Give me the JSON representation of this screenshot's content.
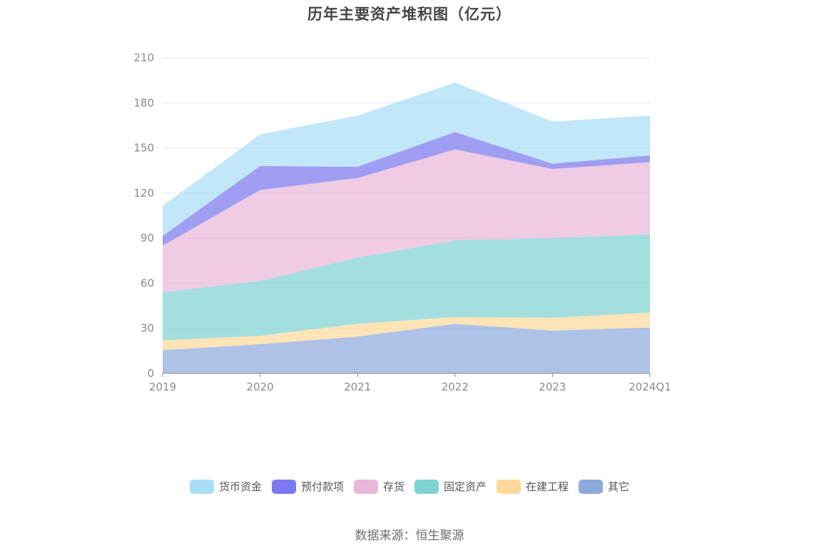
{
  "chart_data": {
    "type": "area",
    "stacked": true,
    "title": "历年主要资产堆积图（亿元）",
    "categories": [
      "2019",
      "2020",
      "2021",
      "2022",
      "2023",
      "2024Q1"
    ],
    "ylim": [
      0,
      210
    ],
    "yticks": [
      "0",
      "30",
      "60",
      "90",
      "120",
      "150",
      "180",
      "210"
    ],
    "grid": true,
    "legend_position": "bottom",
    "series": [
      {
        "name": "其它",
        "color": "#8eaadc",
        "values": [
          15.5,
          19.5,
          24.5,
          33,
          28.5,
          30.5
        ]
      },
      {
        "name": "在建工程",
        "color": "#ffd99b",
        "values": [
          6.5,
          5.5,
          8.5,
          4.5,
          8.5,
          10
        ]
      },
      {
        "name": "固定资产",
        "color": "#7fd3d3",
        "values": [
          32,
          36.5,
          44,
          51,
          53,
          52
        ]
      },
      {
        "name": "存货",
        "color": "#e9b7d9",
        "values": [
          31,
          60.5,
          53,
          60.5,
          46,
          48
        ]
      },
      {
        "name": "预付款项",
        "color": "#7b79ef",
        "values": [
          6.5,
          16,
          7.5,
          11.5,
          3.5,
          4.5
        ]
      },
      {
        "name": "货币资金",
        "color": "#a9def7",
        "values": [
          20,
          21,
          34,
          33,
          28,
          26.5
        ]
      }
    ],
    "legend_order": [
      "货币资金",
      "预付款项",
      "存货",
      "固定资产",
      "在建工程",
      "其它"
    ]
  },
  "source_text": "数据来源：恒生聚源"
}
